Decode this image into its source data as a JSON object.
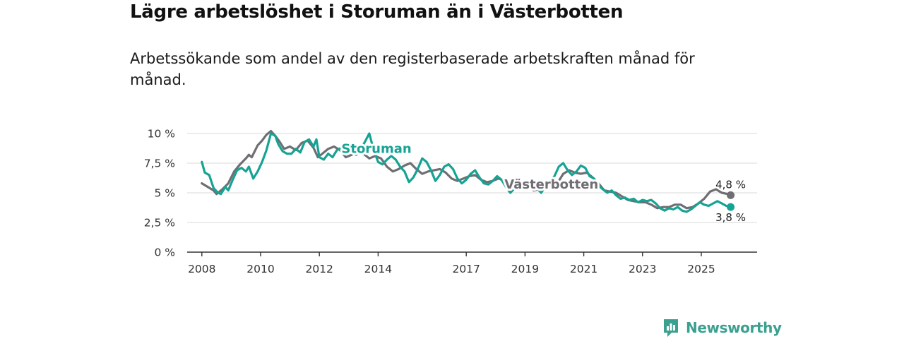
{
  "header": {
    "title": "Lägre arbetslöshet i Storuman än i Västerbotten",
    "subtitle": "Arbetssökande som andel av den registerbaserade arbetskraften månad för månad."
  },
  "brand": {
    "name": "Newsworthy"
  },
  "colors": {
    "storuman": "#16a394",
    "vasterbotten": "#6e6e73",
    "grid": "#d9d9d9",
    "axis": "#333333"
  },
  "chart_data": {
    "type": "line",
    "title": "Lägre arbetslöshet i Storuman än i Västerbotten",
    "subtitle": "Arbetssökande som andel av den registerbaserade arbetskraften månad för månad.",
    "xlabel": "",
    "ylabel": "",
    "xlim": [
      2007.5,
      2026.9
    ],
    "ylim": [
      0,
      10
    ],
    "y_ticks": [
      0,
      2.5,
      5,
      7.5,
      10
    ],
    "y_tick_labels": [
      "0 %",
      "2,5 %",
      "5 %",
      "7,5 %",
      "10 %"
    ],
    "x_ticks": [
      2008,
      2010,
      2012,
      2014,
      2017,
      2019,
      2021,
      2023,
      2025
    ],
    "x_tick_labels": [
      "2008",
      "2010",
      "2012",
      "2014",
      "2017",
      "2019",
      "2021",
      "2023",
      "2025"
    ],
    "grid": "horizontal",
    "series": [
      {
        "name": "Västerbotten",
        "label": "Västerbotten",
        "end_label": "4,8 %",
        "end_value": 4.8,
        "points": [
          [
            2008.0,
            5.8
          ],
          [
            2008.2,
            5.5
          ],
          [
            2008.4,
            5.2
          ],
          [
            2008.5,
            4.9
          ],
          [
            2008.7,
            5.3
          ],
          [
            2008.9,
            5.8
          ],
          [
            2009.1,
            6.8
          ],
          [
            2009.3,
            7.4
          ],
          [
            2009.5,
            7.9
          ],
          [
            2009.6,
            8.2
          ],
          [
            2009.7,
            8.0
          ],
          [
            2009.9,
            9.0
          ],
          [
            2010.05,
            9.4
          ],
          [
            2010.2,
            9.9
          ],
          [
            2010.35,
            10.2
          ],
          [
            2010.5,
            9.8
          ],
          [
            2010.65,
            9.3
          ],
          [
            2010.8,
            8.7
          ],
          [
            2011.0,
            8.9
          ],
          [
            2011.2,
            8.6
          ],
          [
            2011.4,
            9.2
          ],
          [
            2011.6,
            9.4
          ],
          [
            2011.8,
            8.8
          ],
          [
            2011.95,
            8.0
          ],
          [
            2012.1,
            8.3
          ],
          [
            2012.3,
            8.7
          ],
          [
            2012.5,
            8.9
          ],
          [
            2012.7,
            8.6
          ],
          [
            2012.9,
            8.0
          ],
          [
            2013.1,
            8.2
          ],
          [
            2013.3,
            8.6
          ],
          [
            2013.5,
            8.3
          ],
          [
            2013.7,
            7.9
          ],
          [
            2013.9,
            8.1
          ],
          [
            2014.1,
            7.9
          ],
          [
            2014.3,
            7.2
          ],
          [
            2014.5,
            6.8
          ],
          [
            2014.7,
            7.0
          ],
          [
            2014.9,
            7.3
          ],
          [
            2015.1,
            7.5
          ],
          [
            2015.3,
            7.0
          ],
          [
            2015.5,
            6.6
          ],
          [
            2015.7,
            6.8
          ],
          [
            2015.9,
            6.9
          ],
          [
            2016.1,
            7.0
          ],
          [
            2016.3,
            6.7
          ],
          [
            2016.5,
            6.2
          ],
          [
            2016.7,
            6.0
          ],
          [
            2016.9,
            6.2
          ],
          [
            2017.1,
            6.4
          ],
          [
            2017.3,
            6.5
          ],
          [
            2017.5,
            6.1
          ],
          [
            2017.7,
            5.9
          ],
          [
            2017.9,
            6.0
          ],
          [
            2018.1,
            6.2
          ],
          [
            2018.3,
            6.0
          ],
          [
            2018.5,
            5.6
          ],
          [
            2018.7,
            5.4
          ],
          [
            2018.9,
            5.6
          ],
          [
            2019.1,
            5.5
          ],
          [
            2019.3,
            5.2
          ],
          [
            2019.5,
            5.3
          ],
          [
            2019.7,
            5.4
          ],
          [
            2019.9,
            5.6
          ],
          [
            2020.1,
            5.8
          ],
          [
            2020.3,
            6.6
          ],
          [
            2020.5,
            6.9
          ],
          [
            2020.7,
            6.7
          ],
          [
            2020.9,
            6.6
          ],
          [
            2021.1,
            6.7
          ],
          [
            2021.3,
            6.3
          ],
          [
            2021.5,
            5.8
          ],
          [
            2021.7,
            5.2
          ],
          [
            2021.9,
            5.1
          ],
          [
            2022.1,
            5.0
          ],
          [
            2022.3,
            4.7
          ],
          [
            2022.5,
            4.4
          ],
          [
            2022.7,
            4.3
          ],
          [
            2022.9,
            4.2
          ],
          [
            2023.1,
            4.2
          ],
          [
            2023.3,
            4.0
          ],
          [
            2023.5,
            3.7
          ],
          [
            2023.7,
            3.8
          ],
          [
            2023.9,
            3.8
          ],
          [
            2024.1,
            4.0
          ],
          [
            2024.3,
            4.0
          ],
          [
            2024.5,
            3.7
          ],
          [
            2024.7,
            3.8
          ],
          [
            2024.9,
            4.1
          ],
          [
            2025.1,
            4.5
          ],
          [
            2025.3,
            5.1
          ],
          [
            2025.5,
            5.3
          ],
          [
            2025.7,
            5.0
          ],
          [
            2025.9,
            4.9
          ],
          [
            2026.0,
            4.8
          ]
        ]
      },
      {
        "name": "Storuman",
        "label": "Storuman",
        "end_label": "3,8 %",
        "end_value": 3.8,
        "points": [
          [
            2008.0,
            7.6
          ],
          [
            2008.1,
            6.7
          ],
          [
            2008.25,
            6.5
          ],
          [
            2008.4,
            5.4
          ],
          [
            2008.55,
            5.0
          ],
          [
            2008.65,
            4.9
          ],
          [
            2008.8,
            5.5
          ],
          [
            2008.9,
            5.2
          ],
          [
            2009.05,
            6.1
          ],
          [
            2009.2,
            6.9
          ],
          [
            2009.35,
            7.1
          ],
          [
            2009.5,
            6.8
          ],
          [
            2009.6,
            7.2
          ],
          [
            2009.75,
            6.2
          ],
          [
            2009.9,
            6.8
          ],
          [
            2010.05,
            7.6
          ],
          [
            2010.2,
            8.6
          ],
          [
            2010.35,
            10.0
          ],
          [
            2010.5,
            9.8
          ],
          [
            2010.6,
            9.1
          ],
          [
            2010.75,
            8.5
          ],
          [
            2010.9,
            8.3
          ],
          [
            2011.05,
            8.3
          ],
          [
            2011.2,
            8.7
          ],
          [
            2011.35,
            8.4
          ],
          [
            2011.5,
            9.3
          ],
          [
            2011.65,
            9.5
          ],
          [
            2011.8,
            8.9
          ],
          [
            2011.9,
            9.5
          ],
          [
            2012.0,
            8.0
          ],
          [
            2012.15,
            7.8
          ],
          [
            2012.3,
            8.3
          ],
          [
            2012.45,
            8.0
          ],
          [
            2012.6,
            8.6
          ],
          [
            2012.75,
            8.8
          ],
          [
            2012.9,
            8.4
          ],
          [
            2013.0,
            8.9
          ],
          [
            2013.1,
            8.5
          ],
          [
            2013.25,
            8.2
          ],
          [
            2013.4,
            8.6
          ],
          [
            2013.55,
            9.3
          ],
          [
            2013.7,
            10.0
          ],
          [
            2013.85,
            8.6
          ],
          [
            2014.0,
            7.6
          ],
          [
            2014.15,
            7.4
          ],
          [
            2014.3,
            7.8
          ],
          [
            2014.45,
            8.1
          ],
          [
            2014.6,
            7.8
          ],
          [
            2014.75,
            7.2
          ],
          [
            2014.9,
            6.8
          ],
          [
            2015.05,
            5.9
          ],
          [
            2015.2,
            6.3
          ],
          [
            2015.35,
            7.0
          ],
          [
            2015.5,
            7.9
          ],
          [
            2015.65,
            7.6
          ],
          [
            2015.8,
            6.9
          ],
          [
            2015.95,
            6.0
          ],
          [
            2016.1,
            6.5
          ],
          [
            2016.25,
            7.2
          ],
          [
            2016.4,
            7.4
          ],
          [
            2016.55,
            7.0
          ],
          [
            2016.7,
            6.2
          ],
          [
            2016.85,
            5.8
          ],
          [
            2017.0,
            6.1
          ],
          [
            2017.15,
            6.6
          ],
          [
            2017.3,
            6.9
          ],
          [
            2017.45,
            6.3
          ],
          [
            2017.6,
            5.8
          ],
          [
            2017.75,
            5.7
          ],
          [
            2017.9,
            6.0
          ],
          [
            2018.05,
            6.4
          ],
          [
            2018.2,
            6.1
          ],
          [
            2018.35,
            5.5
          ],
          [
            2018.5,
            5.0
          ],
          [
            2018.65,
            5.4
          ],
          [
            2018.8,
            5.8
          ],
          [
            2018.95,
            5.5
          ],
          [
            2019.1,
            5.3
          ],
          [
            2019.25,
            5.7
          ],
          [
            2019.4,
            5.4
          ],
          [
            2019.55,
            5.0
          ],
          [
            2019.7,
            5.6
          ],
          [
            2019.85,
            5.9
          ],
          [
            2020.0,
            6.4
          ],
          [
            2020.15,
            7.2
          ],
          [
            2020.3,
            7.5
          ],
          [
            2020.45,
            6.9
          ],
          [
            2020.6,
            6.5
          ],
          [
            2020.75,
            6.8
          ],
          [
            2020.9,
            7.3
          ],
          [
            2021.05,
            7.1
          ],
          [
            2021.2,
            6.4
          ],
          [
            2021.35,
            6.2
          ],
          [
            2021.5,
            5.6
          ],
          [
            2021.65,
            5.3
          ],
          [
            2021.8,
            5.0
          ],
          [
            2021.95,
            5.2
          ],
          [
            2022.1,
            4.8
          ],
          [
            2022.25,
            4.5
          ],
          [
            2022.4,
            4.6
          ],
          [
            2022.55,
            4.4
          ],
          [
            2022.7,
            4.5
          ],
          [
            2022.85,
            4.2
          ],
          [
            2023.0,
            4.4
          ],
          [
            2023.15,
            4.3
          ],
          [
            2023.3,
            4.4
          ],
          [
            2023.45,
            4.1
          ],
          [
            2023.6,
            3.7
          ],
          [
            2023.75,
            3.5
          ],
          [
            2023.9,
            3.7
          ],
          [
            2024.05,
            3.6
          ],
          [
            2024.2,
            3.8
          ],
          [
            2024.35,
            3.5
          ],
          [
            2024.5,
            3.4
          ],
          [
            2024.65,
            3.6
          ],
          [
            2024.8,
            3.9
          ],
          [
            2024.95,
            4.2
          ],
          [
            2025.1,
            4.0
          ],
          [
            2025.25,
            3.9
          ],
          [
            2025.4,
            4.1
          ],
          [
            2025.55,
            4.3
          ],
          [
            2025.7,
            4.1
          ],
          [
            2025.85,
            3.9
          ],
          [
            2026.0,
            3.8
          ]
        ]
      }
    ]
  }
}
